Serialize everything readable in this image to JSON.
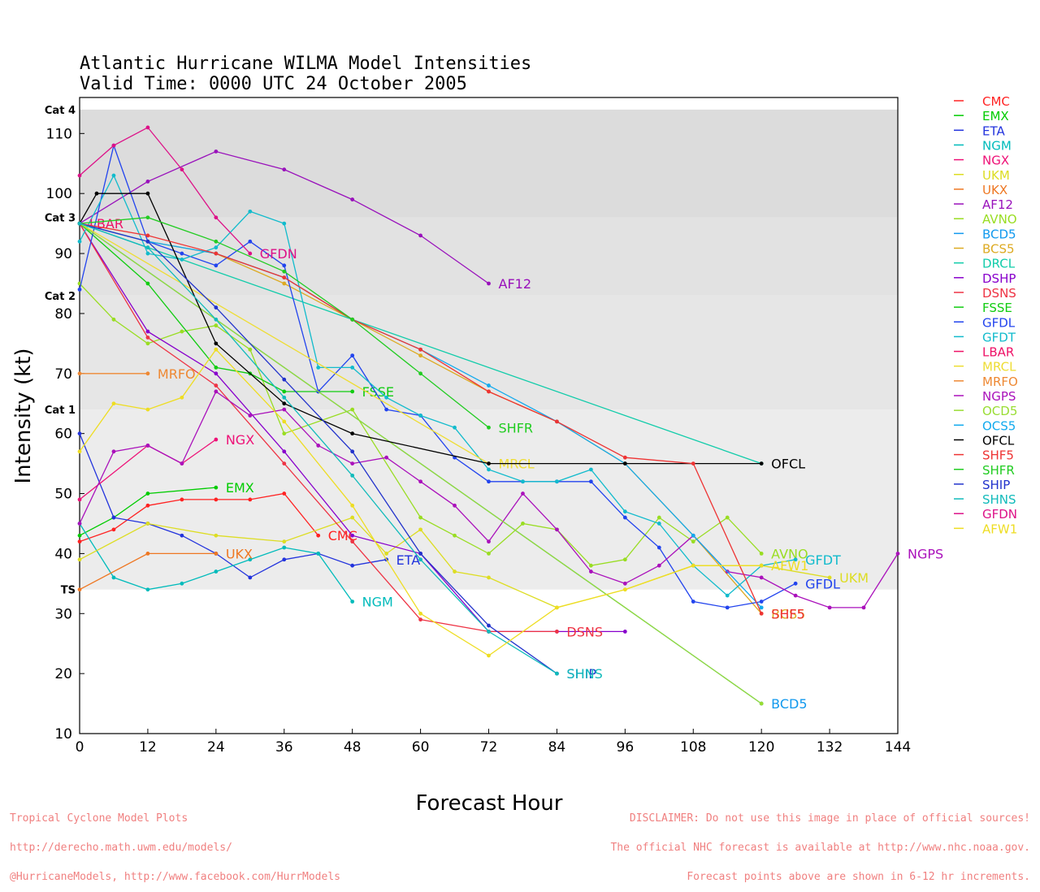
{
  "chart_data": {
    "type": "line",
    "title": "Atlantic Hurricane WILMA Model Intensities",
    "subtitle": "Valid Time: 0000 UTC 24 October 2005",
    "xlabel": "Forecast Hour",
    "ylabel": "Intensity (kt)",
    "xlim": [
      0,
      144
    ],
    "ylim": [
      10,
      116
    ],
    "x_ticks": [
      0,
      12,
      24,
      36,
      48,
      60,
      72,
      84,
      96,
      108,
      120,
      132,
      144
    ],
    "y_ticks": [
      10,
      20,
      30,
      40,
      50,
      60,
      70,
      80,
      90,
      100,
      110
    ],
    "legend_position": "right",
    "bands": [
      {
        "from": 10,
        "to": 34,
        "color": "#ffffff"
      },
      {
        "from": 34,
        "to": 64,
        "color": "#ececec"
      },
      {
        "from": 64,
        "to": 83,
        "color": "#e6e6e6"
      },
      {
        "from": 83,
        "to": 96,
        "color": "#e2e2e2"
      },
      {
        "from": 96,
        "to": 114,
        "color": "#dcdcdc"
      },
      {
        "from": 114,
        "to": 116,
        "color": "#ffffff"
      }
    ],
    "category_labels": [
      {
        "label": "TS",
        "value": 34
      },
      {
        "label": "Cat 1",
        "value": 64
      },
      {
        "label": "Cat 2",
        "value": 83
      },
      {
        "label": "Cat 3",
        "value": 96
      },
      {
        "label": "Cat 4",
        "value": 114
      }
    ],
    "series": [
      {
        "name": "CMC",
        "color": "#ff2222",
        "x": [
          0,
          6,
          12,
          18,
          24,
          30,
          36,
          42
        ],
        "y": [
          42,
          44,
          48,
          49,
          49,
          49,
          50,
          43
        ],
        "show_label": true
      },
      {
        "name": "EMX",
        "color": "#00cc00",
        "x": [
          0,
          6,
          12,
          24
        ],
        "y": [
          43,
          46,
          50,
          51
        ],
        "show_label": true
      },
      {
        "name": "ETA",
        "color": "#2233dd",
        "x": [
          0,
          6,
          12,
          18,
          24,
          30,
          36,
          42,
          48,
          54
        ],
        "y": [
          60,
          46,
          45,
          43,
          40,
          36,
          39,
          40,
          38,
          39
        ],
        "show_label": true
      },
      {
        "name": "NGM",
        "color": "#00bbbb",
        "x": [
          0,
          6,
          12,
          18,
          24,
          30,
          36,
          42,
          48
        ],
        "y": [
          45,
          36,
          34,
          35,
          37,
          39,
          41,
          40,
          32
        ],
        "show_label": true
      },
      {
        "name": "NGX",
        "color": "#ee1177",
        "x": [
          0,
          12,
          18,
          24
        ],
        "y": [
          49,
          58,
          55,
          59
        ],
        "show_label": true
      },
      {
        "name": "UKM",
        "color": "#dddd22",
        "x": [
          0,
          12,
          24,
          36,
          48,
          54,
          60,
          66,
          72,
          84,
          96,
          108,
          120,
          132
        ],
        "y": [
          39,
          45,
          43,
          42,
          46,
          40,
          44,
          37,
          36,
          31,
          34,
          38,
          38,
          36
        ],
        "show_label": true
      },
      {
        "name": "UKX",
        "color": "#ee7722",
        "x": [
          0,
          12,
          24
        ],
        "y": [
          34,
          40,
          40
        ],
        "show_label": true
      },
      {
        "name": "AF12",
        "color": "#9911bb",
        "x": [
          0,
          12,
          24,
          36,
          48,
          60,
          72
        ],
        "y": [
          95,
          102,
          107,
          104,
          99,
          93,
          85
        ],
        "show_label": true
      },
      {
        "name": "AVNO",
        "color": "#99dd22",
        "x": [
          0,
          6,
          12,
          18,
          24,
          30,
          36,
          48,
          60,
          66,
          72,
          78,
          84,
          90,
          96,
          102,
          108,
          114,
          120
        ],
        "y": [
          85,
          79,
          75,
          77,
          78,
          74,
          60,
          64,
          46,
          43,
          40,
          45,
          44,
          38,
          39,
          46,
          42,
          46,
          40
        ],
        "show_label": true
      },
      {
        "name": "BCD5",
        "color": "#1199ee",
        "x": [
          0,
          120
        ],
        "y": [
          95,
          15
        ],
        "show_label": true
      },
      {
        "name": "BCS5",
        "color": "#ddaa22",
        "x": [
          0,
          12,
          24,
          36,
          48,
          60,
          72,
          84,
          96,
          108,
          120
        ],
        "y": [
          95,
          92,
          90,
          85,
          79,
          73,
          67,
          62,
          55,
          43,
          30
        ],
        "show_label": true
      },
      {
        "name": "DRCL",
        "color": "#11ccaa",
        "x": [
          0,
          120
        ],
        "y": [
          95,
          55
        ],
        "show_label": false
      },
      {
        "name": "DSHP",
        "color": "#8800cc",
        "x": [
          0,
          12,
          24,
          36,
          48,
          60,
          72,
          84,
          96
        ],
        "y": [
          95,
          77,
          70,
          57,
          43,
          40,
          27,
          27,
          27
        ],
        "show_label": false
      },
      {
        "name": "DSNS",
        "color": "#ee3344",
        "x": [
          0,
          12,
          24,
          36,
          48,
          60,
          72,
          84
        ],
        "y": [
          95,
          76,
          68,
          55,
          42,
          29,
          27,
          27
        ],
        "show_label": true
      },
      {
        "name": "FSSE",
        "color": "#11cc11",
        "x": [
          0,
          12,
          24,
          30,
          36,
          42,
          48
        ],
        "y": [
          95,
          85,
          71,
          70,
          67,
          67,
          67
        ],
        "show_label": true
      },
      {
        "name": "GFDL",
        "color": "#2244ee",
        "x": [
          0,
          6,
          12,
          18,
          24,
          30,
          36,
          42,
          48,
          54,
          60,
          66,
          72,
          78,
          84,
          90,
          96,
          102,
          108,
          114,
          120,
          126
        ],
        "y": [
          84,
          108,
          92,
          90,
          88,
          92,
          88,
          67,
          73,
          64,
          63,
          56,
          52,
          52,
          52,
          52,
          46,
          41,
          32,
          31,
          32,
          35
        ],
        "show_label": true
      },
      {
        "name": "GFDT",
        "color": "#11bbcc",
        "x": [
          0,
          6,
          12,
          18,
          24,
          30,
          36,
          42,
          48,
          54,
          60,
          66,
          72,
          78,
          84,
          90,
          96,
          102,
          108,
          114,
          120,
          126
        ],
        "y": [
          92,
          103,
          90,
          89,
          91,
          97,
          95,
          71,
          71,
          66,
          63,
          61,
          54,
          52,
          52,
          54,
          47,
          45,
          38,
          33,
          38,
          39
        ],
        "show_label": true
      },
      {
        "name": "LBAR",
        "color": "#ee1166",
        "x": [
          0
        ],
        "y": [
          95
        ],
        "show_label": true
      },
      {
        "name": "MRCL",
        "color": "#eedd33",
        "x": [
          0,
          72
        ],
        "y": [
          95,
          55
        ],
        "show_label": true
      },
      {
        "name": "MRFO",
        "color": "#ee8833",
        "x": [
          0,
          12
        ],
        "y": [
          70,
          70
        ],
        "show_label": true
      },
      {
        "name": "NGPS",
        "color": "#aa11bb",
        "x": [
          0,
          6,
          12,
          18,
          24,
          30,
          36,
          42,
          48,
          54,
          60,
          66,
          72,
          78,
          84,
          90,
          96,
          102,
          108,
          114,
          120,
          126,
          132,
          138,
          144
        ],
        "y": [
          45,
          57,
          58,
          55,
          67,
          63,
          64,
          58,
          55,
          56,
          52,
          48,
          42,
          50,
          44,
          37,
          35,
          38,
          43,
          37,
          36,
          33,
          31,
          31,
          40
        ],
        "show_label": true
      },
      {
        "name": "OCD5",
        "color": "#99dd33",
        "x": [
          0,
          120
        ],
        "y": [
          95,
          15
        ],
        "show_label": false
      },
      {
        "name": "OCS5",
        "color": "#11aaee",
        "x": [
          0,
          12,
          24,
          36,
          48,
          60,
          72,
          84,
          96,
          108,
          120
        ],
        "y": [
          95,
          92,
          90,
          86,
          79,
          74,
          68,
          62,
          55,
          43,
          31
        ],
        "show_label": false
      },
      {
        "name": "OFCL",
        "color": "#000000",
        "x": [
          0,
          3,
          12,
          24,
          36,
          48,
          72,
          96,
          120
        ],
        "y": [
          95,
          100,
          100,
          75,
          65,
          60,
          55,
          55,
          55
        ],
        "show_label": true
      },
      {
        "name": "SHF5",
        "color": "#ee3333",
        "x": [
          0,
          12,
          24,
          36,
          48,
          60,
          72,
          84,
          96,
          108,
          120
        ],
        "y": [
          95,
          93,
          90,
          86,
          79,
          74,
          67,
          62,
          56,
          55,
          30
        ],
        "show_label": true
      },
      {
        "name": "SHFR",
        "color": "#22cc22",
        "x": [
          0,
          12,
          24,
          36,
          48,
          60,
          72
        ],
        "y": [
          95,
          96,
          92,
          87,
          79,
          70,
          61
        ],
        "show_label": true
      },
      {
        "name": "SHIP",
        "color": "#2233cc",
        "x": [
          0,
          12,
          24,
          36,
          48,
          60,
          72,
          84
        ],
        "y": [
          95,
          92,
          81,
          69,
          57,
          40,
          28,
          20
        ],
        "show_label": true
      },
      {
        "name": "SHNS",
        "color": "#11bbbb",
        "x": [
          0,
          12,
          24,
          36,
          48,
          60,
          72,
          84
        ],
        "y": [
          95,
          91,
          79,
          66,
          53,
          39,
          27,
          20
        ],
        "show_label": true
      },
      {
        "name": "GFDN",
        "color": "#dd1188",
        "x": [
          0,
          6,
          12,
          18,
          24,
          30
        ],
        "y": [
          103,
          108,
          111,
          104,
          96,
          90
        ],
        "show_label": true
      },
      {
        "name": "AFW1",
        "color": "#eedd22",
        "x": [
          0,
          6,
          12,
          18,
          24,
          36,
          48,
          60,
          72,
          84,
          96,
          108,
          120
        ],
        "y": [
          57,
          65,
          64,
          66,
          74,
          62,
          48,
          30,
          23,
          31,
          34,
          38,
          38
        ],
        "show_label": true
      }
    ]
  },
  "footer_left": [
    "Tropical Cyclone Model Plots",
    "http://derecho.math.uwm.edu/models/",
    "@HurricaneModels, http://www.facebook.com/HurrModels"
  ],
  "footer_right": [
    "DISCLAIMER: Do not use this image in place of official sources!",
    "The official NHC forecast is available at http://www.nhc.noaa.gov.",
    "Forecast points above are shown in 6-12 hr increments."
  ]
}
